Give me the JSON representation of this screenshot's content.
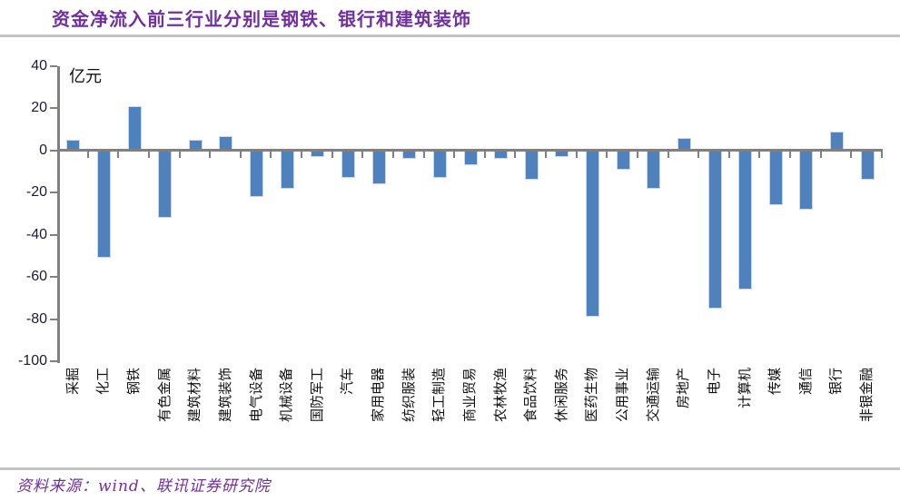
{
  "header": {
    "title": "资金净流入前三行业分别是钢铁、银行和建筑装饰"
  },
  "footer": {
    "source": "资料来源：wind、联讯证券研究院"
  },
  "colors": {
    "bar": "#4F81BD",
    "title_text": "#7030A0",
    "axis": "#808080",
    "rule": "#C3C3C3"
  },
  "chart_data": {
    "type": "bar",
    "title": "资金净流入前三行业分别是钢铁、银行和建筑装饰",
    "unit_label": "亿元",
    "ylabel": "亿元",
    "xlabel": "",
    "grid": false,
    "legend_position": "none",
    "ylim": [
      -100,
      40
    ],
    "yticks": [
      40,
      20,
      0,
      -20,
      -40,
      -60,
      -80,
      -100
    ],
    "bar_color": "#4F81BD",
    "categories": [
      "采掘",
      "化工",
      "钢铁",
      "有色金属",
      "建筑材料",
      "建筑装饰",
      "电气设备",
      "机械设备",
      "国防军工",
      "汽车",
      "家用电器",
      "纺织服装",
      "轻工制造",
      "商业贸易",
      "农林牧渔",
      "食品饮料",
      "休闲服务",
      "医药生物",
      "公用事业",
      "交通运输",
      "房地产",
      "电子",
      "计算机",
      "传媒",
      "通信",
      "银行",
      "非银金融"
    ],
    "values": [
      5,
      -51,
      21,
      -32,
      5,
      7,
      -22,
      -18,
      -3,
      -13,
      -16,
      -4,
      -13,
      -7,
      -4,
      -14,
      -3,
      -79,
      -9,
      -18,
      6,
      -75,
      -66,
      -26,
      -28,
      9,
      -14
    ]
  }
}
